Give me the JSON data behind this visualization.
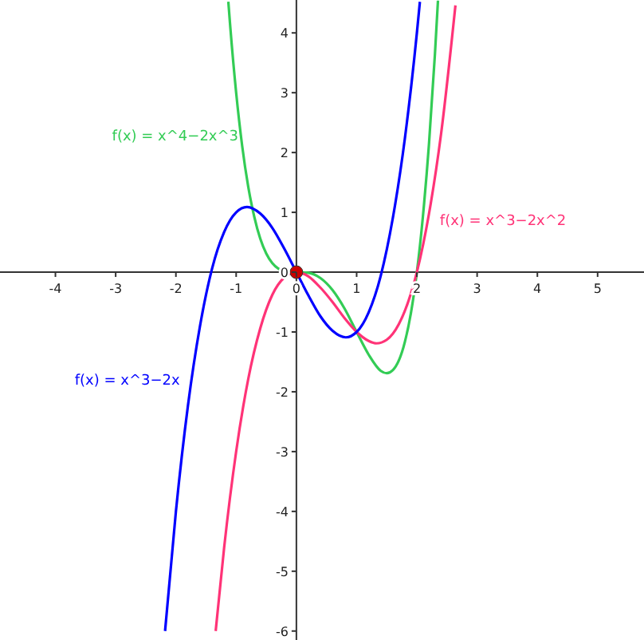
{
  "chart_data": {
    "type": "line",
    "xlim": [
      -4.92,
      5.77
    ],
    "ylim": [
      -6.15,
      4.55
    ],
    "xticks": [
      -4,
      -3,
      -2,
      -1,
      0,
      1,
      2,
      3,
      4,
      5
    ],
    "yticks": [
      -6,
      -5,
      -4,
      -3,
      -2,
      -1,
      0,
      1,
      2,
      3,
      4
    ],
    "grid": false,
    "line_style": "solid",
    "series": [
      {
        "name": "f(x) = x^4−2x^3",
        "color": "#33cc55",
        "marker": "none",
        "x": [
          -1.13,
          -1.1,
          -1.0,
          -0.9,
          -0.8,
          -0.7,
          -0.6,
          -0.5,
          -0.4,
          -0.3,
          -0.2,
          0,
          0.2,
          0.4,
          0.6,
          0.8,
          1.0,
          1.2,
          1.4,
          1.5,
          1.6,
          1.8,
          1.9,
          2.0,
          2.1,
          2.2,
          2.3,
          2.35
        ],
        "values": [
          4.52,
          4.13,
          3,
          2.11,
          1.43,
          0.93,
          0.56,
          0.31,
          0.15,
          0.06,
          0.02,
          0,
          -0.01,
          -0.1,
          -0.3,
          -0.61,
          -1,
          -1.38,
          -1.65,
          -1.69,
          -1.64,
          -1.17,
          -0.69,
          0,
          0.93,
          2.13,
          3.65,
          4.54
        ]
      },
      {
        "name": "f(x) = x^3−2x^2",
        "color": "#ff3377",
        "marker": "none",
        "x": [
          -1.34,
          -1.2,
          -1.0,
          -0.8,
          -0.6,
          -0.4,
          -0.2,
          0,
          0.2,
          0.4,
          0.6,
          0.8,
          1.0,
          1.2,
          1.33,
          1.5,
          1.7,
          1.9,
          2.0,
          2.2,
          2.4,
          2.64
        ],
        "values": [
          -6.0,
          -4.61,
          -3,
          -1.79,
          -0.94,
          -0.38,
          -0.09,
          0,
          -0.07,
          -0.26,
          -0.5,
          -0.77,
          -1,
          -1.15,
          -1.19,
          -1.13,
          -0.87,
          -0.36,
          0,
          0.97,
          2.3,
          4.46
        ]
      },
      {
        "name": "f(x) = x^3−2x",
        "color": "#0000ff",
        "marker": "none",
        "x": [
          -2.18,
          -2.0,
          -1.8,
          -1.6,
          -1.4,
          -1.2,
          -1.0,
          -0.82,
          -0.6,
          -0.4,
          -0.2,
          0,
          0.2,
          0.4,
          0.6,
          0.82,
          1.0,
          1.2,
          1.4,
          1.6,
          1.8,
          2.0,
          2.05
        ],
        "values": [
          -6.0,
          -4,
          -2.23,
          -0.9,
          0.06,
          0.67,
          1,
          1.09,
          0.98,
          0.74,
          0.39,
          0,
          -0.39,
          -0.74,
          -0.98,
          -1.09,
          -1,
          -0.67,
          -0.06,
          0.9,
          2.23,
          4,
          4.52
        ]
      },
      {
        "type": "scatter",
        "color": "#cc0000",
        "marker": "circle",
        "x": [
          0
        ],
        "values": [
          0
        ]
      }
    ]
  }
}
